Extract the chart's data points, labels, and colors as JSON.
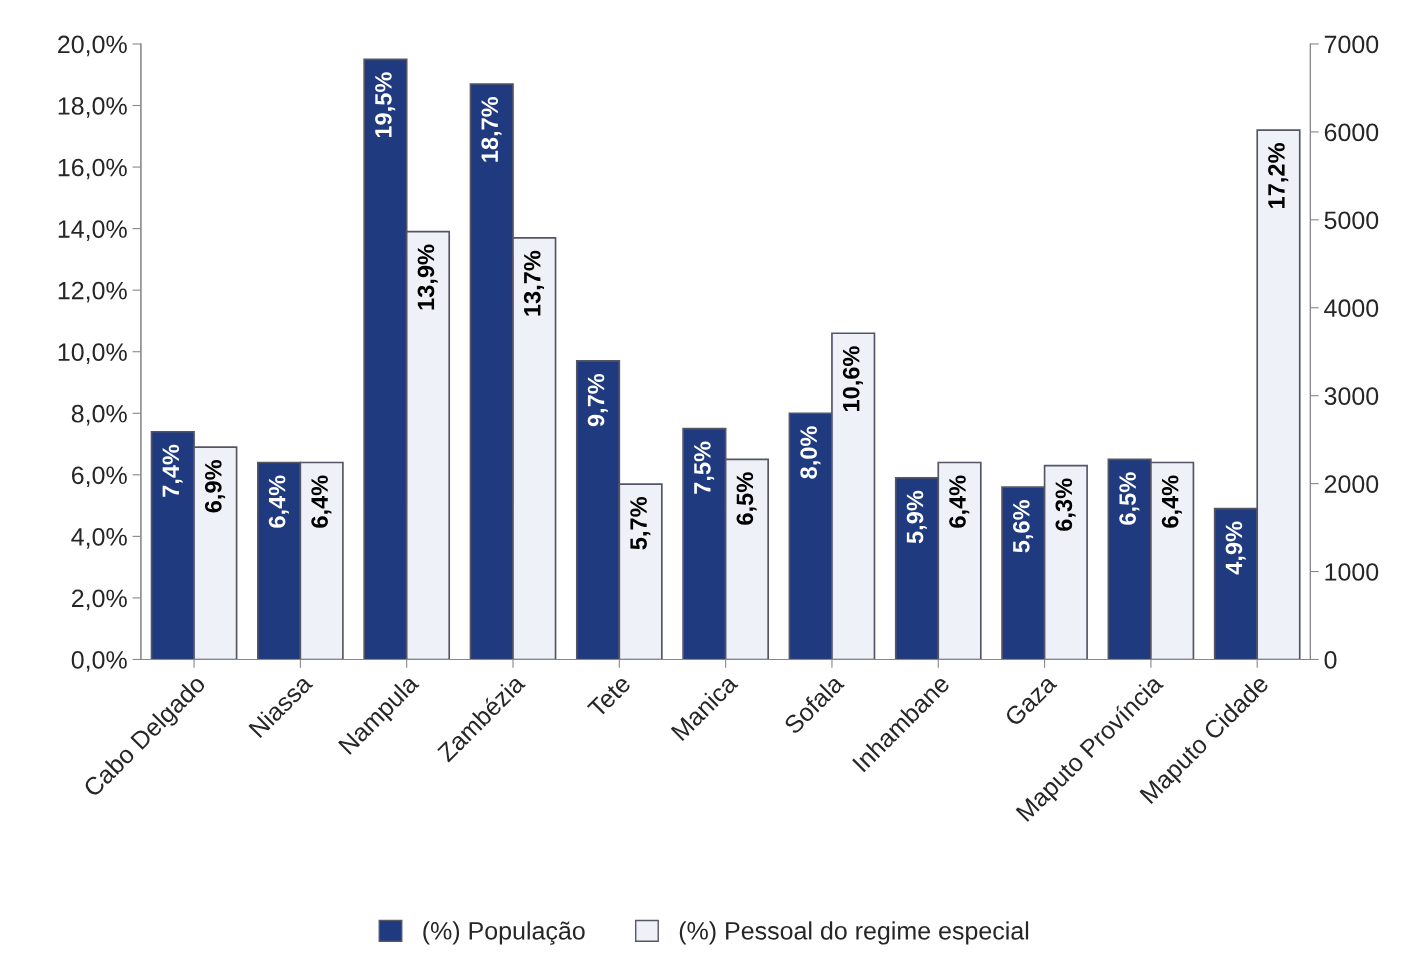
{
  "chart_data": {
    "type": "bar",
    "categories": [
      "Cabo Delgado",
      "Niassa",
      "Nampula",
      "Zambézia",
      "Tete",
      "Manica",
      "Sofala",
      "Inhambane",
      "Gaza",
      "Maputo Província",
      "Maputo Cidade"
    ],
    "series": [
      {
        "name": "(%) População",
        "color": "#1f3a7f",
        "values": [
          7.4,
          6.4,
          19.5,
          18.7,
          9.7,
          7.5,
          8.0,
          5.9,
          5.6,
          6.5,
          4.9
        ],
        "value_labels": [
          "7,4%",
          "6,4%",
          "19,5%",
          "18,7%",
          "9,7%",
          "7,5%",
          "8,0%",
          "5,9%",
          "5,6%",
          "6,5%",
          "4,9%"
        ]
      },
      {
        "name": "(%) Pessoal do regime especial",
        "color": "#eef2f8",
        "values": [
          6.9,
          6.4,
          13.9,
          13.7,
          5.7,
          6.5,
          10.6,
          6.4,
          6.3,
          6.4,
          17.2
        ],
        "value_labels": [
          "6,9%",
          "6,4%",
          "13,9%",
          "13,7%",
          "5,7%",
          "6,5%",
          "10,6%",
          "6,4%",
          "6,3%",
          "6,4%",
          "17,2%"
        ]
      }
    ],
    "ylim": [
      0,
      20
    ],
    "yticks": [
      {
        "value": 0,
        "label": "0,0%"
      },
      {
        "value": 2,
        "label": "2,0%"
      },
      {
        "value": 4,
        "label": "4,0%"
      },
      {
        "value": 6,
        "label": "6,0%"
      },
      {
        "value": 8,
        "label": "8,0%"
      },
      {
        "value": 10,
        "label": "10,0%"
      },
      {
        "value": 12,
        "label": "12,0%"
      },
      {
        "value": 14,
        "label": "14,0%"
      },
      {
        "value": 16,
        "label": "16,0%"
      },
      {
        "value": 18,
        "label": "18,0%"
      },
      {
        "value": 20,
        "label": "20,0%"
      }
    ],
    "y2lim": [
      0,
      7000
    ],
    "y2ticks": [
      0,
      1000,
      2000,
      3000,
      4000,
      5000,
      6000,
      7000
    ],
    "legend": "bottom",
    "grid": false
  }
}
